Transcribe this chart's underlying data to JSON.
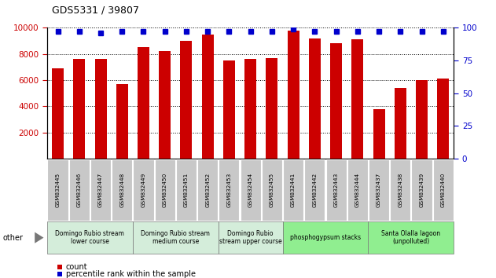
{
  "title": "GDS5331 / 39807",
  "samples": [
    "GSM832445",
    "GSM832446",
    "GSM832447",
    "GSM832448",
    "GSM832449",
    "GSM832450",
    "GSM832451",
    "GSM832452",
    "GSM832453",
    "GSM832454",
    "GSM832455",
    "GSM832441",
    "GSM832442",
    "GSM832443",
    "GSM832444",
    "GSM832437",
    "GSM832438",
    "GSM832439",
    "GSM832440"
  ],
  "counts": [
    6900,
    7600,
    7600,
    5700,
    8500,
    8200,
    9000,
    9500,
    7500,
    7600,
    7700,
    9800,
    9200,
    8800,
    9100,
    3800,
    5400,
    6000,
    6100
  ],
  "percentiles": [
    97,
    97,
    96,
    97,
    97,
    97,
    97,
    97,
    97,
    97,
    97,
    99,
    97,
    97,
    97,
    97,
    97,
    97,
    97
  ],
  "groups": [
    {
      "label": "Domingo Rubio stream\nlower course",
      "start": 0,
      "end": 3,
      "color": "#d4edda"
    },
    {
      "label": "Domingo Rubio stream\nmedium course",
      "start": 4,
      "end": 7,
      "color": "#d4edda"
    },
    {
      "label": "Domingo Rubio\nstream upper course",
      "start": 8,
      "end": 10,
      "color": "#d4edda"
    },
    {
      "label": "phosphogypsum stacks",
      "start": 11,
      "end": 14,
      "color": "#90ee90"
    },
    {
      "label": "Santa Olalla lagoon\n(unpolluted)",
      "start": 15,
      "end": 18,
      "color": "#90ee90"
    }
  ],
  "bar_color": "#cc0000",
  "dot_color": "#0000cc",
  "ylim_left": [
    0,
    10000
  ],
  "ylim_right": [
    0,
    100
  ],
  "yticks_left": [
    2000,
    4000,
    6000,
    8000,
    10000
  ],
  "yticks_right": [
    0,
    25,
    50,
    75,
    100
  ],
  "bar_color_left": "#cc0000",
  "bar_color_right": "#0000cc",
  "bg_color": "#ffffff",
  "tick_label_bg": "#c8c8c8",
  "other_label": "other",
  "fig_width": 6.31,
  "fig_height": 3.54,
  "dpi": 100
}
